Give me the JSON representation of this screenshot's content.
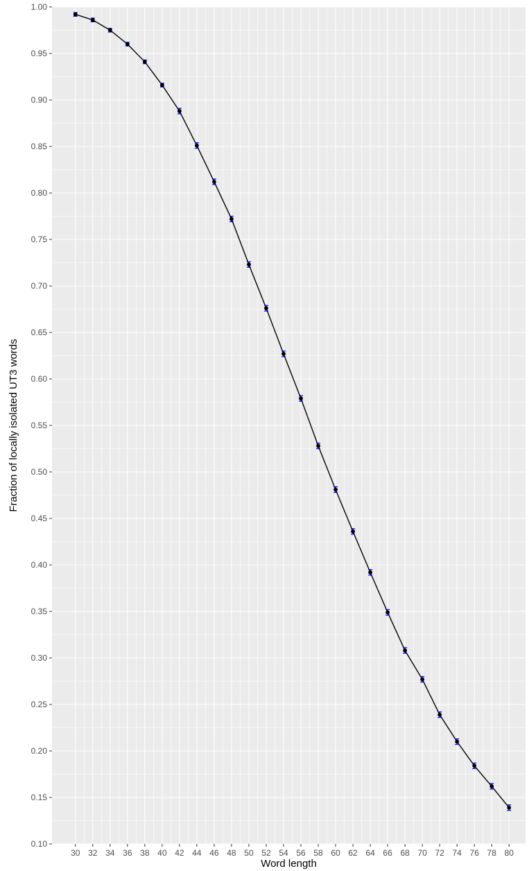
{
  "chart_data": {
    "type": "line",
    "title": "",
    "xlabel": "Word length",
    "ylabel": "Fraction of locally isolated UT3 words",
    "x": [
      30,
      32,
      34,
      36,
      38,
      40,
      42,
      44,
      46,
      48,
      50,
      52,
      54,
      56,
      58,
      60,
      62,
      64,
      66,
      68,
      70,
      72,
      74,
      76,
      78,
      80
    ],
    "series": [
      {
        "values": [
          0.992,
          0.986,
          0.975,
          0.96,
          0.941,
          0.916,
          0.888,
          0.851,
          0.812,
          0.772,
          0.723,
          0.676,
          0.627,
          0.579,
          0.528,
          0.481,
          0.436,
          0.392,
          0.349,
          0.308,
          0.277,
          0.239,
          0.21,
          0.184,
          0.162,
          0.139
        ],
        "error": [
          0.002,
          0.002,
          0.002,
          0.002,
          0.002,
          0.002,
          0.003,
          0.003,
          0.003,
          0.003,
          0.003,
          0.003,
          0.003,
          0.003,
          0.003,
          0.003,
          0.003,
          0.003,
          0.003,
          0.003,
          0.003,
          0.003,
          0.003,
          0.003,
          0.003,
          0.003
        ]
      }
    ],
    "xlim": [
      27.3,
      81.9
    ],
    "ylim": [
      0.1,
      1.0
    ],
    "x_ticks": [
      "30",
      "32",
      "34",
      "36",
      "38",
      "40",
      "42",
      "44",
      "46",
      "48",
      "50",
      "52",
      "54",
      "56",
      "58",
      "60",
      "62",
      "64",
      "66",
      "68",
      "70",
      "72",
      "74",
      "76",
      "78",
      "80"
    ],
    "y_ticks": [
      "0.10",
      "0.15",
      "0.20",
      "0.25",
      "0.30",
      "0.35",
      "0.40",
      "0.45",
      "0.50",
      "0.55",
      "0.60",
      "0.65",
      "0.70",
      "0.75",
      "0.80",
      "0.85",
      "0.90",
      "0.95",
      "1.00"
    ],
    "grid": true,
    "legend": "none",
    "colors": {
      "panel": "#ebebeb",
      "grid_major": "#ffffff",
      "line": "#000000",
      "point": "#000000",
      "error_bar": "#0000ff"
    }
  }
}
